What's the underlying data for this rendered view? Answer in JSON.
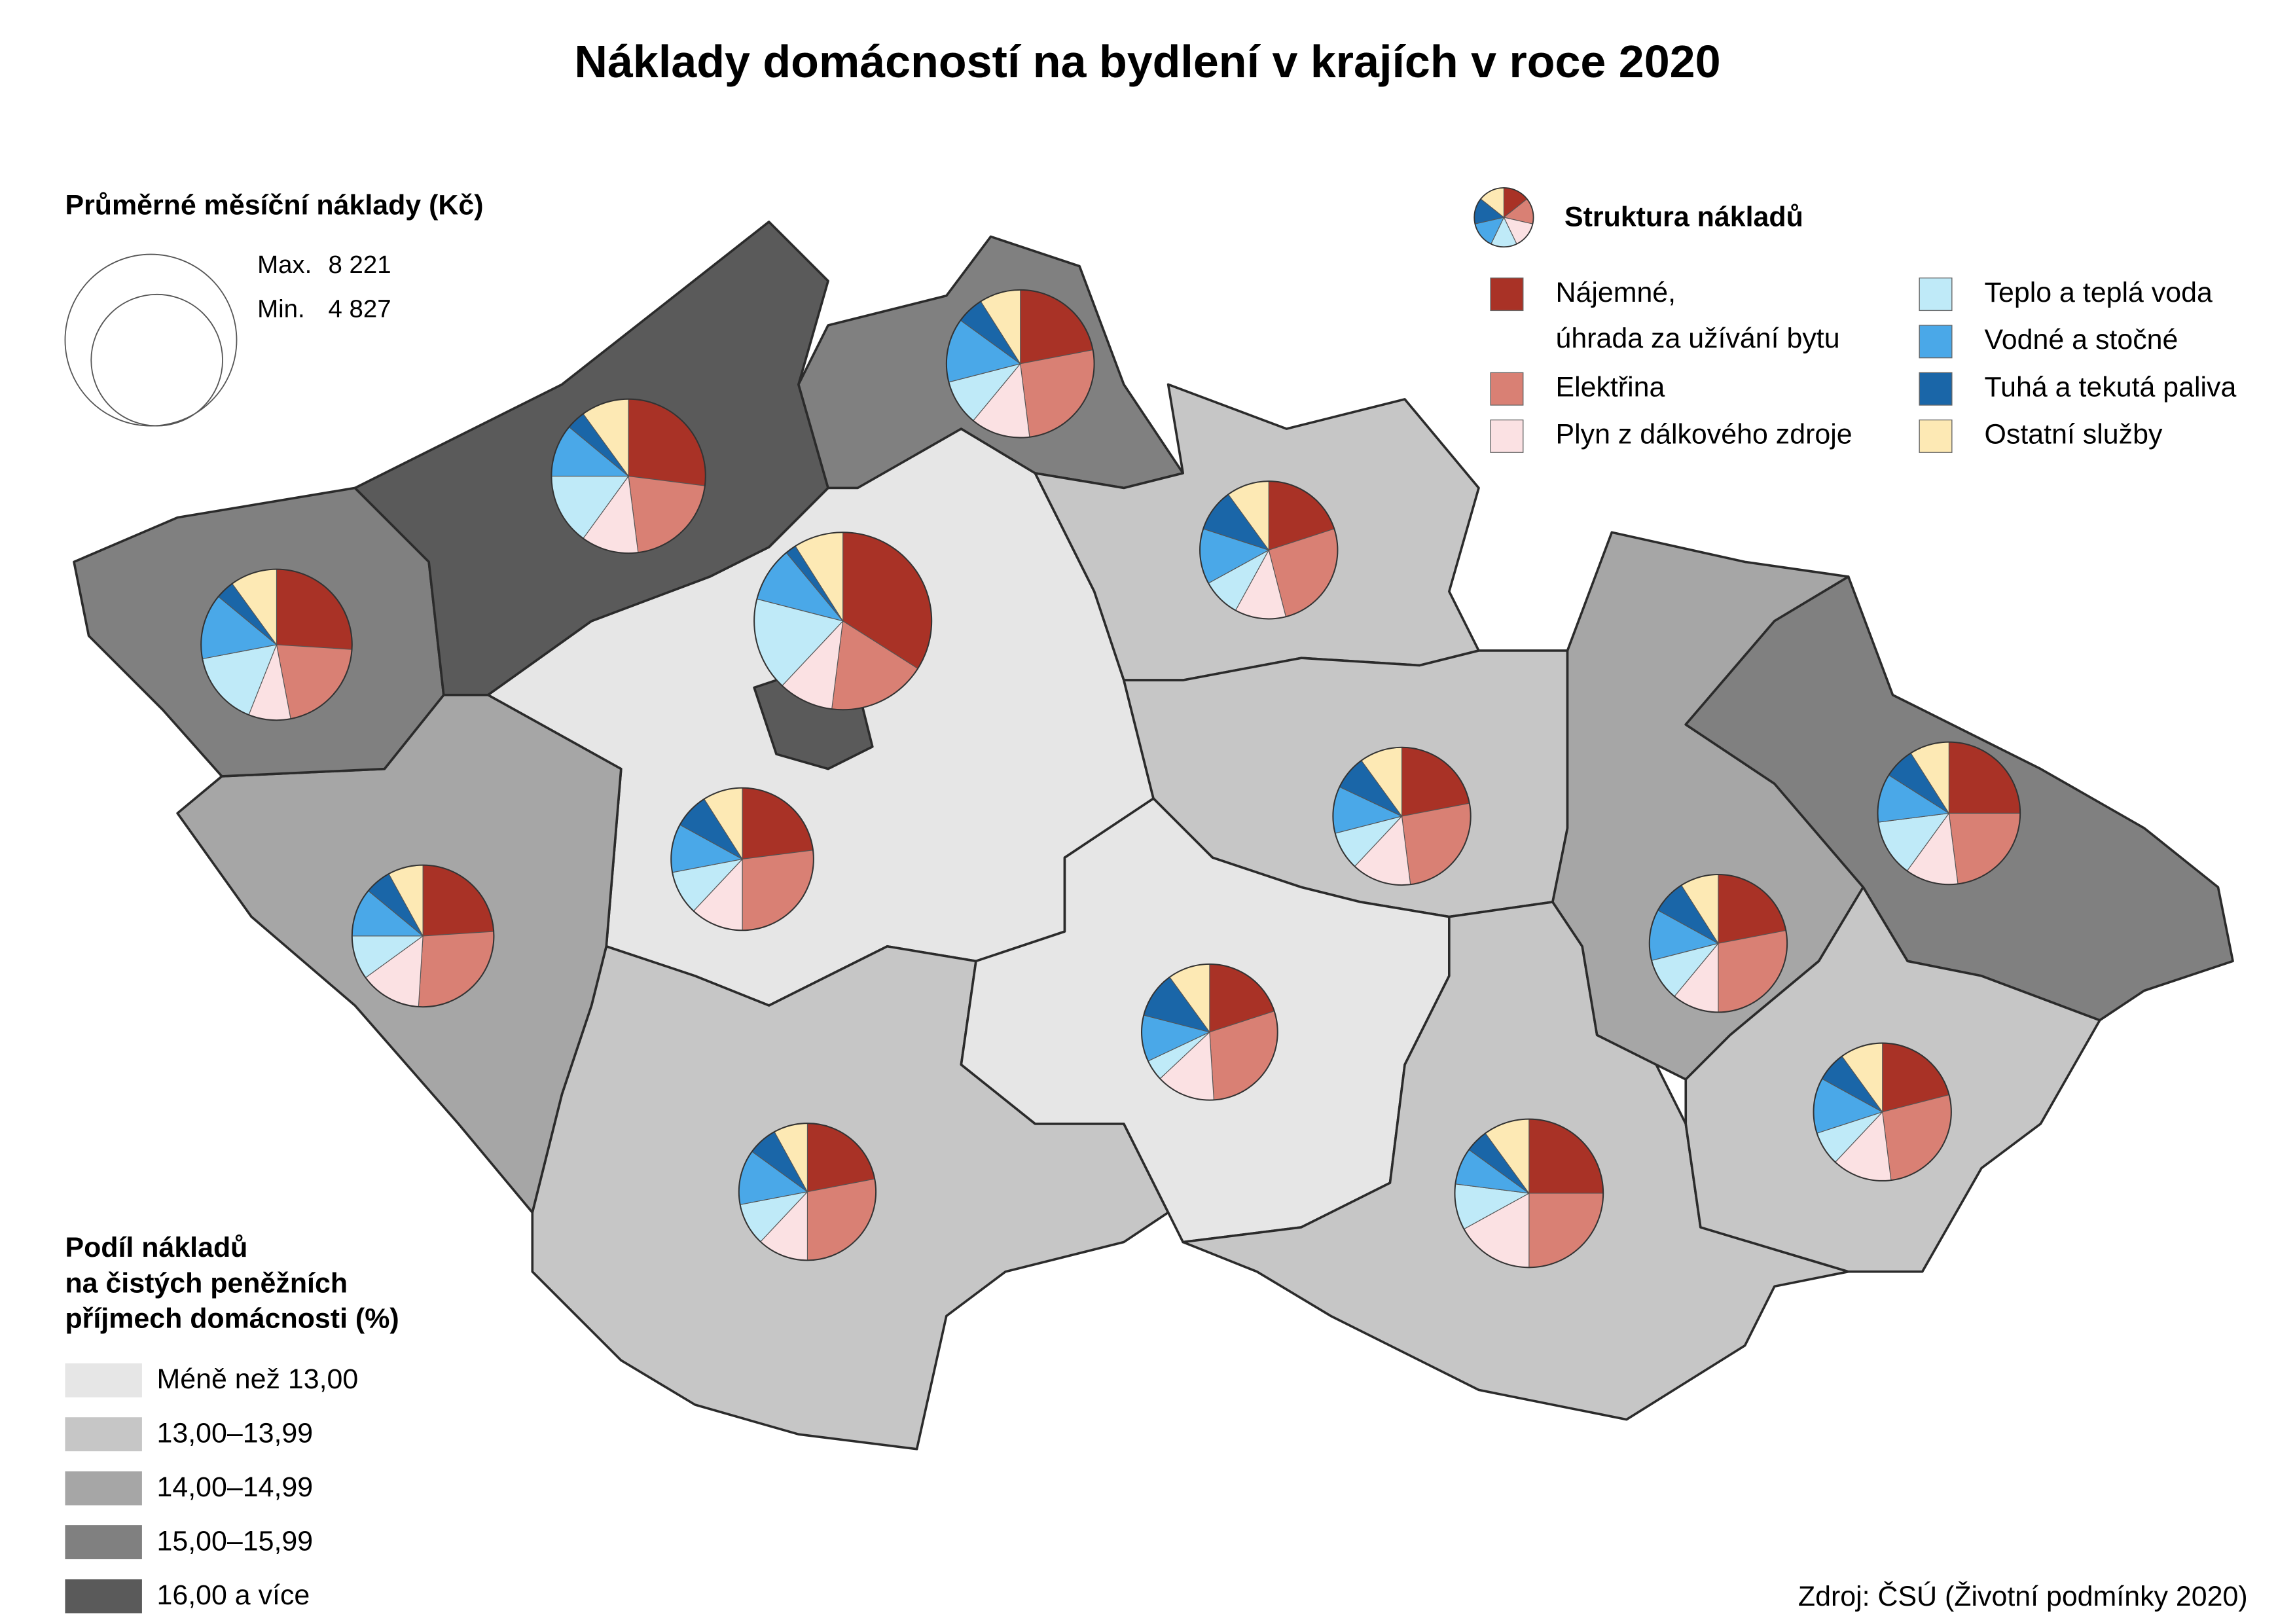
{
  "title": "Náklady domácností na bydlení v krajích v roce 2020",
  "size_legend": {
    "title": "Průměrné měsíční náklady (Kč)",
    "items": [
      {
        "label": "Max.",
        "value": 8221,
        "value_label": "8 221"
      },
      {
        "label": "Min.",
        "value": 4827,
        "value_label": "4 827"
      }
    ]
  },
  "structure_legend": {
    "title": "Struktura nákladů",
    "items": [
      {
        "name": [
          "Nájemné,",
          "úhrada za užívání bytu"
        ],
        "color": "#a93226"
      },
      {
        "name": [
          "Elektřina"
        ],
        "color": "#d98074"
      },
      {
        "name": [
          "Plyn z dálkového zdroje"
        ],
        "color": "#fbe1e3"
      },
      {
        "name": [
          "Teplo a teplá voda"
        ],
        "color": "#bfeaf8"
      },
      {
        "name": [
          "Vodné a stočné"
        ],
        "color": "#4aa8e8"
      },
      {
        "name": [
          "Tuhá a tekutá paliva"
        ],
        "color": "#1a66a8"
      },
      {
        "name": [
          "Ostatní služby"
        ],
        "color": "#fde9b4"
      }
    ]
  },
  "share_legend": {
    "title": [
      "Podíl nákladů",
      "na čistých peněžních",
      "příjmech domácnosti (%)"
    ],
    "classes": [
      {
        "label": "Méně než 13,00",
        "color": "#e6e6e6"
      },
      {
        "label": "13,00–13,99",
        "color": "#c6c6c6"
      },
      {
        "label": "14,00–14,99",
        "color": "#a6a6a6"
      },
      {
        "label": "15,00–15,99",
        "color": "#808080"
      },
      {
        "label": "16,00 a více",
        "color": "#5a5a5a"
      }
    ]
  },
  "regions": [
    {
      "class": 4,
      "cost": 8221,
      "shares": [
        34,
        18,
        10,
        17,
        10,
        2,
        9
      ]
    },
    {
      "class": 0,
      "cost": 5300,
      "shares": [
        23,
        27,
        12,
        10,
        11,
        8,
        9
      ]
    },
    {
      "class": 1,
      "cost": 4900,
      "shares": [
        22,
        28,
        12,
        10,
        13,
        7,
        8
      ]
    },
    {
      "class": 2,
      "cost": 5250,
      "shares": [
        24,
        27,
        14,
        10,
        11,
        6,
        8
      ]
    },
    {
      "class": 3,
      "cost": 5950,
      "shares": [
        26,
        21,
        9,
        16,
        14,
        4,
        10
      ]
    },
    {
      "class": 4,
      "cost": 6200,
      "shares": [
        27,
        21,
        12,
        15,
        11,
        4,
        10
      ]
    },
    {
      "class": 3,
      "cost": 5700,
      "shares": [
        22,
        26,
        13,
        10,
        14,
        6,
        9
      ]
    },
    {
      "class": 1,
      "cost": 4950,
      "shares": [
        20,
        26,
        12,
        9,
        13,
        10,
        10
      ]
    },
    {
      "class": 1,
      "cost": 4950,
      "shares": [
        22,
        26,
        14,
        9,
        11,
        8,
        10
      ]
    },
    {
      "class": 0,
      "cost": 4827,
      "shares": [
        20,
        29,
        14,
        5,
        11,
        11,
        10
      ]
    },
    {
      "class": 1,
      "cost": 5750,
      "shares": [
        25,
        25,
        17,
        10,
        8,
        5,
        10
      ]
    },
    {
      "class": 2,
      "cost": 4950,
      "shares": [
        22,
        28,
        11,
        10,
        12,
        8,
        9
      ]
    },
    {
      "class": 3,
      "cost": 5300,
      "shares": [
        25,
        23,
        12,
        13,
        11,
        7,
        9
      ]
    },
    {
      "class": 1,
      "cost": 4950,
      "shares": [
        21,
        27,
        14,
        8,
        13,
        7,
        10
      ]
    }
  ],
  "source": "Zdroj: ČSÚ (Životní podmínky 2020)"
}
